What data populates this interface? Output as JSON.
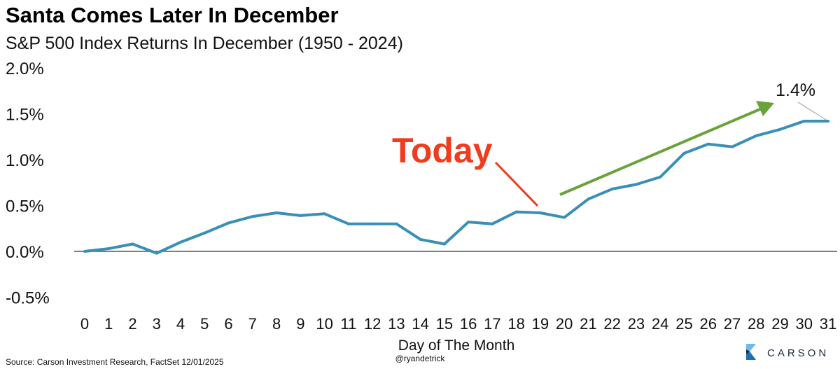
{
  "chart_data": {
    "type": "line",
    "title": "Santa Comes Later In December",
    "subtitle": "S&P 500 Index Returns In December (1950 - 2024)",
    "xlabel": "Day of The Month",
    "ylabel": "",
    "x": [
      0,
      1,
      2,
      3,
      4,
      5,
      6,
      7,
      8,
      9,
      10,
      11,
      12,
      13,
      14,
      15,
      16,
      17,
      18,
      19,
      20,
      21,
      22,
      23,
      24,
      25,
      26,
      27,
      28,
      29,
      30,
      31
    ],
    "series": [
      {
        "values": [
          0.0,
          0.03,
          0.08,
          -0.02,
          0.1,
          0.2,
          0.31,
          0.38,
          0.42,
          0.39,
          0.41,
          0.3,
          0.3,
          0.3,
          0.13,
          0.08,
          0.32,
          0.3,
          0.43,
          0.42,
          0.37,
          0.57,
          0.68,
          0.73,
          0.81,
          1.07,
          1.17,
          1.14,
          1.26,
          1.33,
          1.42,
          1.42
        ],
        "color": "#3a8fb7"
      }
    ],
    "ylim": [
      -0.5,
      2.0
    ],
    "yticks": [
      "2.0%",
      "1.5%",
      "1.0%",
      "0.5%",
      "0.0%",
      "-0.5%"
    ],
    "ytick_values": [
      2.0,
      1.5,
      1.0,
      0.5,
      0.0,
      -0.5
    ],
    "grid": false,
    "annotations": {
      "today_label": "Today",
      "today_day": 19,
      "today_color": "#f03c1e",
      "end_label": "1.4%",
      "trend_arrow_color": "#6aa23a"
    }
  },
  "footer": {
    "source": "Source: Carson Investment Research, FactSet 12/01/2025",
    "handle": "@ryandetrick",
    "logo_text": "CARSON"
  }
}
